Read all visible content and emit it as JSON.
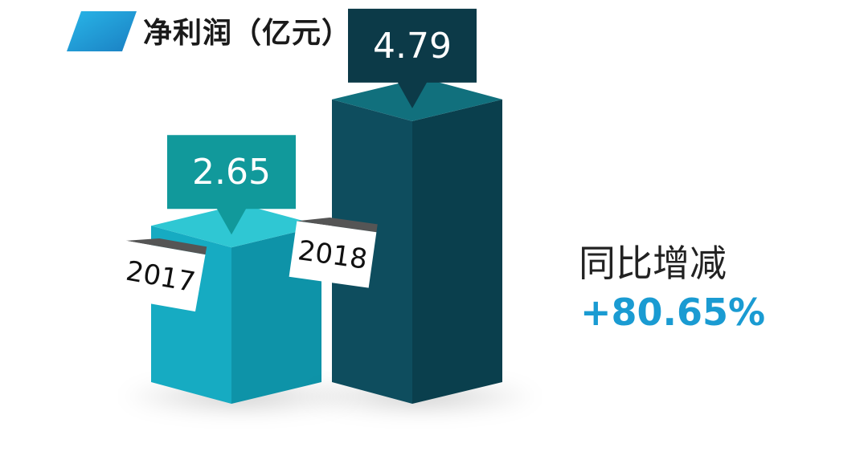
{
  "title": "净利润（亿元）",
  "comparison": {
    "label": "同比增减",
    "value": "+80.65%"
  },
  "colors": {
    "accent": "#1a9bd2",
    "bar_2017_front": "#16abc2",
    "bar_2017_side": "#0e93a8",
    "bar_2017_top": "#2fc7d3",
    "callout_2017": "#11999b",
    "bar_2018_front": "#0e4d5e",
    "bar_2018_side": "#0a3f4d",
    "bar_2018_top": "#11707d",
    "callout_2018": "#0c3a48"
  },
  "chart_data": {
    "type": "bar",
    "title": "净利润（亿元）",
    "categories": [
      "2017",
      "2018"
    ],
    "values": [
      2.65,
      4.79
    ],
    "value_labels": [
      "2.65",
      "4.79"
    ],
    "unit": "亿元"
  }
}
